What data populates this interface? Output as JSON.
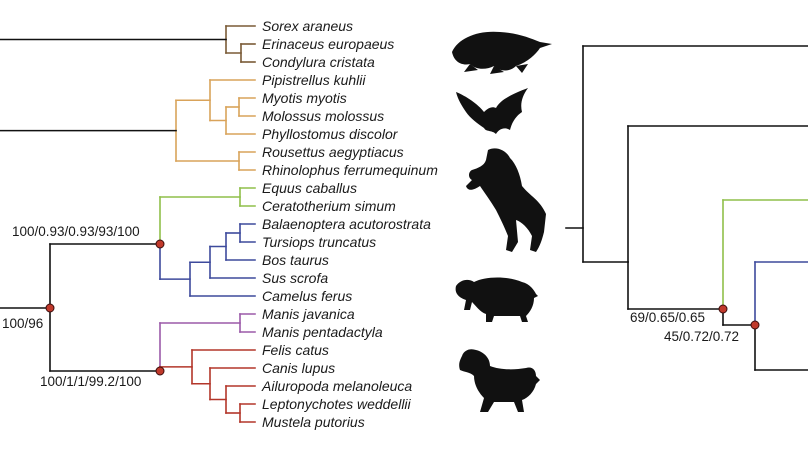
{
  "colors": {
    "black": "#111111",
    "eulipotyphla": "#7a5a36",
    "chiroptera": "#d9a35a",
    "perissodactyla": "#8fbf4a",
    "cetartiodactyla": "#3d4a9c",
    "pholidota": "#9b5aa8",
    "carnivora": "#b3362a",
    "node": "#c0392b"
  },
  "taxa": [
    "Sorex araneus",
    "Erinaceus europaeus",
    "Condylura cristata",
    "Pipistrellus kuhlii",
    "Myotis myotis",
    "Molossus molossus",
    "Phyllostomus discolor",
    "Rousettus aegyptiacus",
    "Rhinolophus ferrumequinum",
    "Equus caballus",
    "Ceratotherium simum",
    "Balaenoptera acutorostrata",
    "Tursiops truncatus",
    "Bos taurus",
    "Sus scrofa",
    "Camelus ferus",
    "Manis javanica",
    "Manis pentadactyla",
    "Felis catus",
    "Canis lupus",
    "Ailuropoda melanoleuca",
    "Leptonychotes weddellii",
    "Mustela putorius"
  ],
  "support_left": {
    "perissodactyla_cetartiodactyla": "100/0.93/0.93/93/100",
    "root": "100/96",
    "pholidota_carnivora": "100/1/1/99.2/100"
  },
  "support_right": {
    "upper": "69/0.65/0.65",
    "lower": "45/0.72/0.72"
  },
  "silhouettes": [
    "mole-silhouette",
    "bat-silhouette",
    "horse-silhouette",
    "pig-silhouette",
    "dog-silhouette"
  ]
}
